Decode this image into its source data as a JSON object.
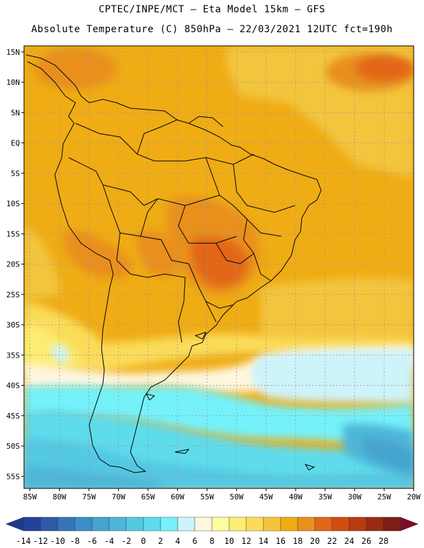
{
  "header": {
    "line1": "CPTEC/INPE/MCT —  Eta Model 15km — GFS",
    "line2": "Absolute Temperature (C) 850hPa — 22/03/2021 12UTC fct=190h"
  },
  "map": {
    "lat_labels": [
      "15N",
      "10N",
      "5N",
      "EQ",
      "5S",
      "10S",
      "15S",
      "20S",
      "25S",
      "30S",
      "35S",
      "40S",
      "45S",
      "50S",
      "55S"
    ],
    "lon_labels": [
      "85W",
      "80W",
      "75W",
      "70W",
      "65W",
      "60W",
      "55W",
      "50W",
      "45W",
      "40W",
      "35W",
      "30W",
      "25W",
      "20W"
    ],
    "lat_range": [
      -57,
      16
    ],
    "lon_range": [
      -86,
      -20
    ]
  },
  "legend": {
    "labels": [
      "-14",
      "-12",
      "-10",
      "-8",
      "-6",
      "-4",
      "-2",
      "0",
      "2",
      "4",
      "6",
      "8",
      "10",
      "12",
      "14",
      "16",
      "18",
      "20",
      "22",
      "24",
      "26",
      "28"
    ],
    "colors": [
      "#24429a",
      "#2d5ba8",
      "#3574b8",
      "#3d8ec8",
      "#45a3cf",
      "#4db6d8",
      "#54c8e2",
      "#5edcec",
      "#74f1fa",
      "#cdf3fb",
      "#fff6df",
      "#fefba0",
      "#fdec72",
      "#fadc5a",
      "#f3c53c",
      "#efac14",
      "#e98f1d",
      "#e26616",
      "#d24c0e",
      "#b83b0d",
      "#9a2b11",
      "#7c1e14"
    ],
    "under_color": "#1f3a87",
    "over_color": "#7a0e2a"
  }
}
